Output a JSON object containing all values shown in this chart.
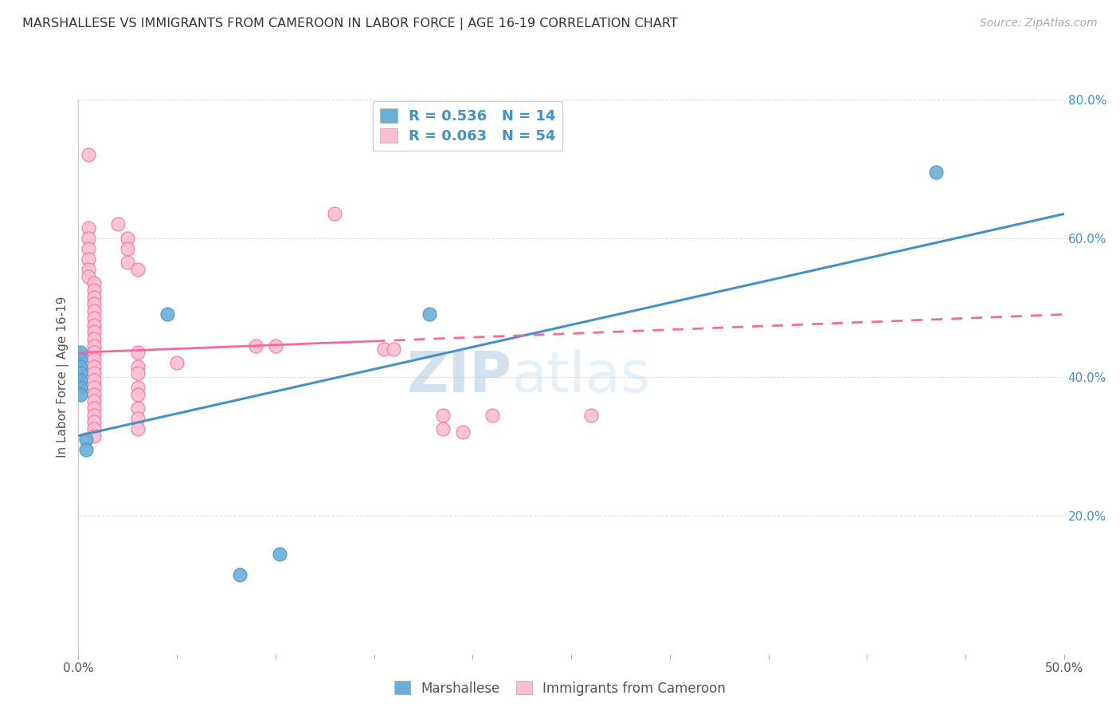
{
  "title": "MARSHALLESE VS IMMIGRANTS FROM CAMEROON IN LABOR FORCE | AGE 16-19 CORRELATION CHART",
  "source": "Source: ZipAtlas.com",
  "ylabel": "In Labor Force | Age 16-19",
  "xlim": [
    0.0,
    0.5
  ],
  "ylim": [
    0.0,
    0.8
  ],
  "xticks": [
    0.0,
    0.05,
    0.1,
    0.15,
    0.2,
    0.25,
    0.3,
    0.35,
    0.4,
    0.45,
    0.5
  ],
  "yticks_right": [
    0.0,
    0.2,
    0.4,
    0.6,
    0.8
  ],
  "ytick_labels_right": [
    "",
    "20.0%",
    "40.0%",
    "60.0%",
    "80.0%"
  ],
  "blue_color": "#6baed6",
  "pink_color": "#fcbfd2",
  "line_blue": "#4292c6",
  "line_pink": "#f768a1",
  "watermark_zip": "ZIP",
  "watermark_atlas": "atlas",
  "blue_points": [
    [
      0.001,
      0.435
    ],
    [
      0.001,
      0.425
    ],
    [
      0.001,
      0.415
    ],
    [
      0.001,
      0.405
    ],
    [
      0.001,
      0.395
    ],
    [
      0.001,
      0.385
    ],
    [
      0.001,
      0.375
    ],
    [
      0.004,
      0.31
    ],
    [
      0.004,
      0.295
    ],
    [
      0.045,
      0.49
    ],
    [
      0.082,
      0.115
    ],
    [
      0.102,
      0.145
    ],
    [
      0.178,
      0.49
    ],
    [
      0.435,
      0.695
    ]
  ],
  "pink_points": [
    [
      0.005,
      0.72
    ],
    [
      0.005,
      0.615
    ],
    [
      0.005,
      0.6
    ],
    [
      0.005,
      0.585
    ],
    [
      0.005,
      0.57
    ],
    [
      0.005,
      0.555
    ],
    [
      0.005,
      0.545
    ],
    [
      0.008,
      0.535
    ],
    [
      0.008,
      0.525
    ],
    [
      0.008,
      0.515
    ],
    [
      0.008,
      0.505
    ],
    [
      0.008,
      0.495
    ],
    [
      0.008,
      0.485
    ],
    [
      0.008,
      0.475
    ],
    [
      0.008,
      0.465
    ],
    [
      0.008,
      0.455
    ],
    [
      0.008,
      0.445
    ],
    [
      0.008,
      0.435
    ],
    [
      0.008,
      0.425
    ],
    [
      0.008,
      0.415
    ],
    [
      0.008,
      0.405
    ],
    [
      0.008,
      0.395
    ],
    [
      0.008,
      0.385
    ],
    [
      0.008,
      0.375
    ],
    [
      0.008,
      0.365
    ],
    [
      0.008,
      0.355
    ],
    [
      0.008,
      0.345
    ],
    [
      0.008,
      0.335
    ],
    [
      0.008,
      0.325
    ],
    [
      0.008,
      0.315
    ],
    [
      0.02,
      0.62
    ],
    [
      0.025,
      0.6
    ],
    [
      0.025,
      0.585
    ],
    [
      0.025,
      0.565
    ],
    [
      0.03,
      0.555
    ],
    [
      0.03,
      0.435
    ],
    [
      0.03,
      0.415
    ],
    [
      0.03,
      0.405
    ],
    [
      0.03,
      0.385
    ],
    [
      0.03,
      0.375
    ],
    [
      0.03,
      0.355
    ],
    [
      0.03,
      0.34
    ],
    [
      0.03,
      0.325
    ],
    [
      0.05,
      0.42
    ],
    [
      0.09,
      0.445
    ],
    [
      0.13,
      0.635
    ],
    [
      0.155,
      0.44
    ],
    [
      0.16,
      0.44
    ],
    [
      0.21,
      0.345
    ],
    [
      0.1,
      0.445
    ],
    [
      0.195,
      0.32
    ],
    [
      0.185,
      0.345
    ],
    [
      0.185,
      0.325
    ],
    [
      0.26,
      0.345
    ]
  ],
  "blue_trendline_x": [
    0.0,
    0.5
  ],
  "blue_trendline_y": [
    0.315,
    0.635
  ],
  "pink_trendline_x": [
    0.0,
    0.5
  ],
  "pink_trendline_y": [
    0.435,
    0.49
  ],
  "background_color": "#ffffff",
  "grid_color": "#e0e0e0"
}
